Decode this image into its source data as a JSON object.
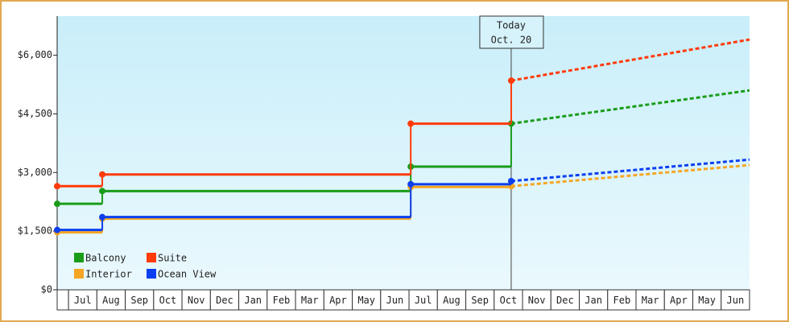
{
  "chart_data": {
    "type": "line",
    "step": true,
    "categories": [
      "Jul",
      "Aug",
      "Sep",
      "Oct",
      "Nov",
      "Dec",
      "Jan",
      "Feb",
      "Mar",
      "Apr",
      "May",
      "Jun",
      "Jul",
      "Aug",
      "Sep",
      "Oct",
      "Nov",
      "Dec",
      "Jan",
      "Feb",
      "Mar",
      "Apr",
      "May",
      "Jun"
    ],
    "xlim": [
      -0.4,
      24
    ],
    "ylim": [
      0,
      7000
    ],
    "yticks": [
      {
        "value": 0,
        "label": "$0"
      },
      {
        "value": 1500,
        "label": "$1,500"
      },
      {
        "value": 3000,
        "label": "$3,000"
      },
      {
        "value": 4500,
        "label": "$4,500"
      },
      {
        "value": 6000,
        "label": "$6,000"
      }
    ],
    "today": {
      "x": 15.6,
      "label": [
        "Today",
        "Oct. 20"
      ]
    },
    "projected_x": [
      15.6,
      24
    ],
    "legend": "lower-left",
    "series": [
      {
        "name": "Balcony",
        "color": "#1a9c1a",
        "x": [
          -0.4,
          1.19,
          12.06,
          15.6
        ],
        "values": [
          2200,
          2525,
          3150,
          4250
        ],
        "projected_values": [
          4250,
          5100
        ]
      },
      {
        "name": "Suite",
        "color": "#ff3b0a",
        "x": [
          -0.4,
          1.19,
          12.06,
          15.6
        ],
        "values": [
          2650,
          2950,
          4250,
          5350
        ],
        "projected_values": [
          5350,
          6400
        ]
      },
      {
        "name": "Interior",
        "color": "#f5a623",
        "x": [
          -0.4,
          1.19,
          12.06,
          15.6
        ],
        "values": [
          1470,
          1820,
          2630,
          2650
        ],
        "projected_values": [
          2650,
          3190
        ]
      },
      {
        "name": "Ocean View",
        "color": "#0b3ff0",
        "x": [
          -0.4,
          1.19,
          12.06,
          15.6
        ],
        "values": [
          1530,
          1860,
          2700,
          2780
        ],
        "projected_values": [
          2780,
          3330
        ]
      }
    ]
  }
}
